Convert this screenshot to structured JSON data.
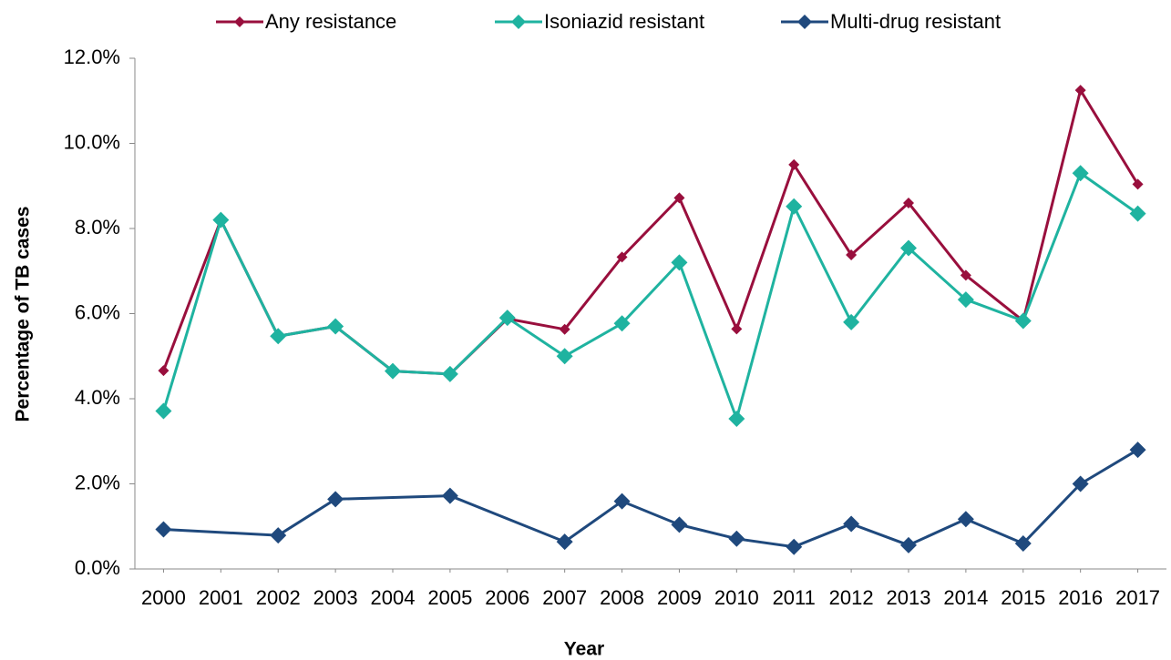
{
  "chart_data": {
    "type": "line",
    "x_label": "Year",
    "y_label": "Percentage of TB cases",
    "x": [
      2000,
      2001,
      2002,
      2003,
      2004,
      2005,
      2006,
      2007,
      2008,
      2009,
      2010,
      2011,
      2012,
      2013,
      2014,
      2015,
      2016,
      2017
    ],
    "xlim": [
      1999.5,
      2017.5
    ],
    "xticks": [
      2000,
      2001,
      2002,
      2003,
      2004,
      2005,
      2006,
      2007,
      2008,
      2009,
      2010,
      2011,
      2012,
      2013,
      2014,
      2015,
      2016,
      2017
    ],
    "ylim": [
      0,
      12
    ],
    "yticks": [
      {
        "value": 0,
        "label": "0.0%"
      },
      {
        "value": 2,
        "label": "2.0%"
      },
      {
        "value": 4,
        "label": "4.0%"
      },
      {
        "value": 6,
        "label": "6.0%"
      },
      {
        "value": 8,
        "label": "8.0%"
      },
      {
        "value": 10,
        "label": "10.0%"
      },
      {
        "value": 12,
        "label": "12.0%"
      }
    ],
    "grid": false,
    "legend": "top",
    "series": [
      {
        "name": "Any resistance",
        "color": "#990f3d",
        "values": [
          4.66,
          8.2,
          5.47,
          5.7,
          4.65,
          4.58,
          5.88,
          5.63,
          7.33,
          8.72,
          5.64,
          9.5,
          7.38,
          8.6,
          6.9,
          5.83,
          11.25,
          9.04
        ]
      },
      {
        "name": "Isoniazid resistant",
        "color": "#1fb3a0",
        "values": [
          3.71,
          8.2,
          5.47,
          5.7,
          4.65,
          4.58,
          5.9,
          5.0,
          5.77,
          7.2,
          3.53,
          8.52,
          5.8,
          7.54,
          6.33,
          5.83,
          9.3,
          8.35
        ]
      },
      {
        "name": "Multi-drug resistant",
        "color": "#1f497d",
        "x": [
          2000,
          2002,
          2003,
          2005,
          2007,
          2008,
          2009,
          2010,
          2011,
          2012,
          2013,
          2014,
          2015,
          2016,
          2017
        ],
        "values": [
          0.93,
          0.79,
          1.64,
          1.72,
          0.64,
          1.59,
          1.04,
          0.71,
          0.52,
          1.06,
          0.56,
          1.17,
          0.6,
          2.0,
          2.8
        ]
      }
    ]
  }
}
